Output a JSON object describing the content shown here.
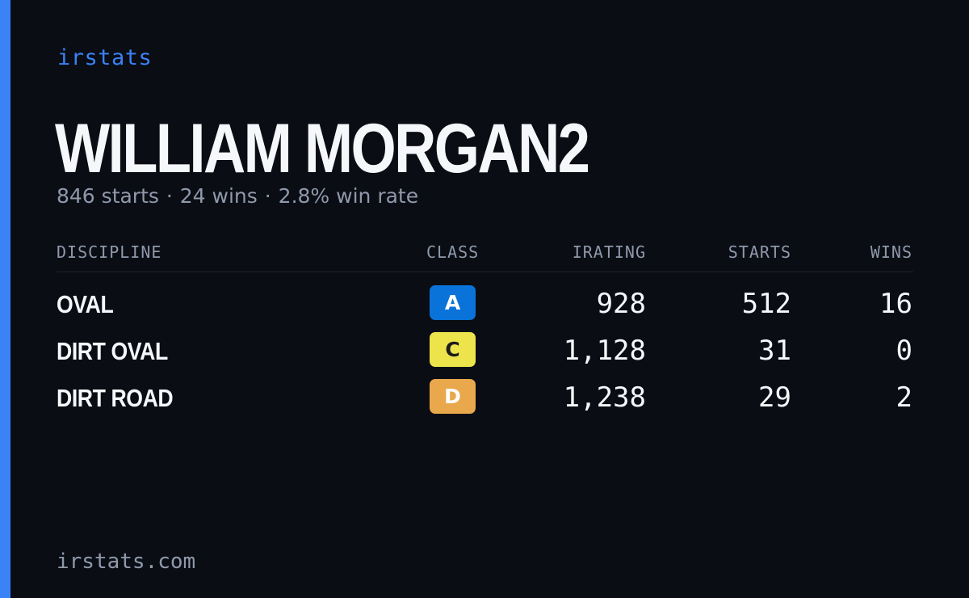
{
  "brand": "irstats",
  "player": {
    "name": "WILLIAM MORGAN2",
    "starts_text": "846 starts",
    "wins_text": "24 wins",
    "winrate_text": "2.8% win rate",
    "separator": "·"
  },
  "table": {
    "headers": {
      "discipline": "DISCIPLINE",
      "class": "CLASS",
      "irating": "IRATING",
      "starts": "STARTS",
      "wins": "WINS"
    },
    "rows": [
      {
        "discipline": "OVAL",
        "class": "A",
        "class_bg": "#0a73d9",
        "class_fg": "#ffffff",
        "irating": "928",
        "starts": "512",
        "wins": "16"
      },
      {
        "discipline": "DIRT OVAL",
        "class": "C",
        "class_bg": "#ede44c",
        "class_fg": "#1c1c1c",
        "irating": "1,128",
        "starts": "31",
        "wins": "0"
      },
      {
        "discipline": "DIRT ROAD",
        "class": "D",
        "class_bg": "#e9a84b",
        "class_fg": "#ffffff",
        "irating": "1,238",
        "starts": "29",
        "wins": "2"
      }
    ]
  },
  "footer": {
    "domain": "irstats.com"
  },
  "colors": {
    "accent": "#3b82f6",
    "background": "#0a0d14",
    "muted": "#8f99ab",
    "text": "#f5f7fb"
  }
}
